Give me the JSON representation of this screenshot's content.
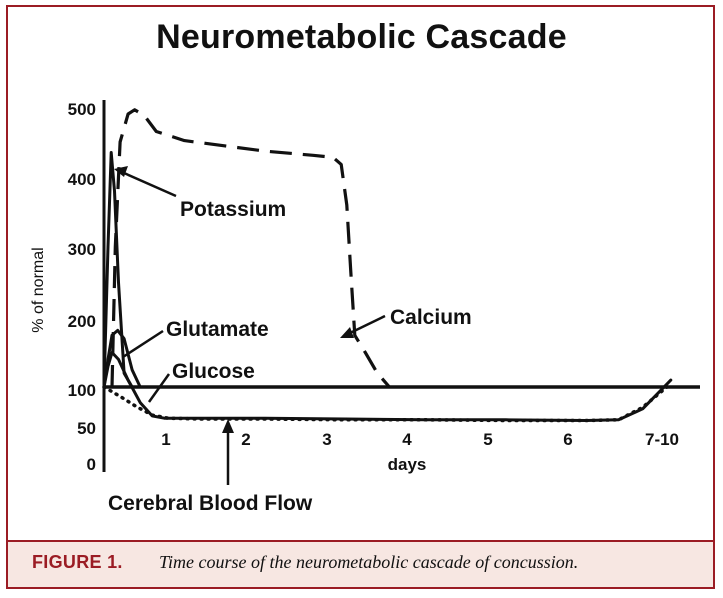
{
  "figure": {
    "label": "FIGURE 1.",
    "caption": "Time course of the neurometabolic cascade of concussion."
  },
  "colors": {
    "accent": "#9b1c24",
    "caption_background": "#f7e7e2",
    "ink": "#111111"
  },
  "chart_data": {
    "type": "line",
    "title": "Neurometabolic Cascade",
    "xlabel": "days",
    "ylabel": "% of normal",
    "y_ticks": [
      "500",
      "400",
      "300",
      "200",
      "100",
      "50",
      "0"
    ],
    "x_ticks": [
      "1",
      "2",
      "3",
      "4",
      "5",
      "6",
      "7-10"
    ],
    "xlim": [
      0,
      7.1
    ],
    "baseline": 100,
    "grid": false,
    "series": [
      {
        "name": "Potassium",
        "style": "solid",
        "points": [
          [
            0,
            100
          ],
          [
            0.05,
            300
          ],
          [
            0.09,
            435
          ],
          [
            0.13,
            380
          ],
          [
            0.18,
            250
          ],
          [
            0.25,
            120
          ],
          [
            0.35,
            100
          ]
        ]
      },
      {
        "name": "Glutamate",
        "style": "solid",
        "points": [
          [
            0,
            100
          ],
          [
            0.05,
            140
          ],
          [
            0.1,
            175
          ],
          [
            0.17,
            182
          ],
          [
            0.25,
            170
          ],
          [
            0.35,
            125
          ],
          [
            0.45,
            100
          ]
        ]
      },
      {
        "name": "Glucose",
        "style": "solid",
        "points": [
          [
            0,
            100
          ],
          [
            0.05,
            130
          ],
          [
            0.1,
            150
          ],
          [
            0.18,
            140
          ],
          [
            0.3,
            110
          ],
          [
            0.45,
            80
          ],
          [
            0.6,
            63
          ],
          [
            0.75,
            60
          ],
          [
            1.2,
            60
          ],
          [
            2,
            60
          ],
          [
            3,
            59
          ],
          [
            4,
            58
          ],
          [
            5,
            58
          ],
          [
            6,
            57
          ],
          [
            6.4,
            58
          ],
          [
            6.7,
            72
          ],
          [
            7.05,
            110
          ]
        ]
      },
      {
        "name": "Calcium",
        "style": "dashed",
        "points": [
          [
            0.1,
            100
          ],
          [
            0.14,
            300
          ],
          [
            0.2,
            450
          ],
          [
            0.3,
            490
          ],
          [
            0.38,
            496
          ],
          [
            0.5,
            488
          ],
          [
            0.65,
            465
          ],
          [
            1,
            452
          ],
          [
            2,
            437
          ],
          [
            2.6,
            431
          ],
          [
            2.85,
            428
          ],
          [
            2.95,
            418
          ],
          [
            3.02,
            360
          ],
          [
            3.07,
            265
          ],
          [
            3.12,
            175
          ],
          [
            3.25,
            150
          ],
          [
            3.4,
            120
          ],
          [
            3.55,
            100
          ]
        ]
      },
      {
        "name": "Cerebral Blood Flow",
        "style": "dotted",
        "points": [
          [
            0,
            100
          ],
          [
            0.2,
            88
          ],
          [
            0.4,
            75
          ],
          [
            0.6,
            64
          ],
          [
            0.8,
            60
          ],
          [
            1.2,
            59
          ],
          [
            2,
            59
          ],
          [
            3,
            58
          ],
          [
            4,
            58
          ],
          [
            5,
            57
          ],
          [
            6,
            57
          ],
          [
            6.4,
            58
          ],
          [
            6.7,
            74
          ],
          [
            7,
            100
          ]
        ]
      }
    ],
    "annotations": [
      {
        "text": "Potassium",
        "series": "Potassium"
      },
      {
        "text": "Glutamate",
        "series": "Glutamate"
      },
      {
        "text": "Glucose",
        "series": "Glucose"
      },
      {
        "text": "Calcium",
        "series": "Calcium"
      },
      {
        "text": "Cerebral Blood Flow",
        "series": "Cerebral Blood Flow"
      }
    ]
  }
}
